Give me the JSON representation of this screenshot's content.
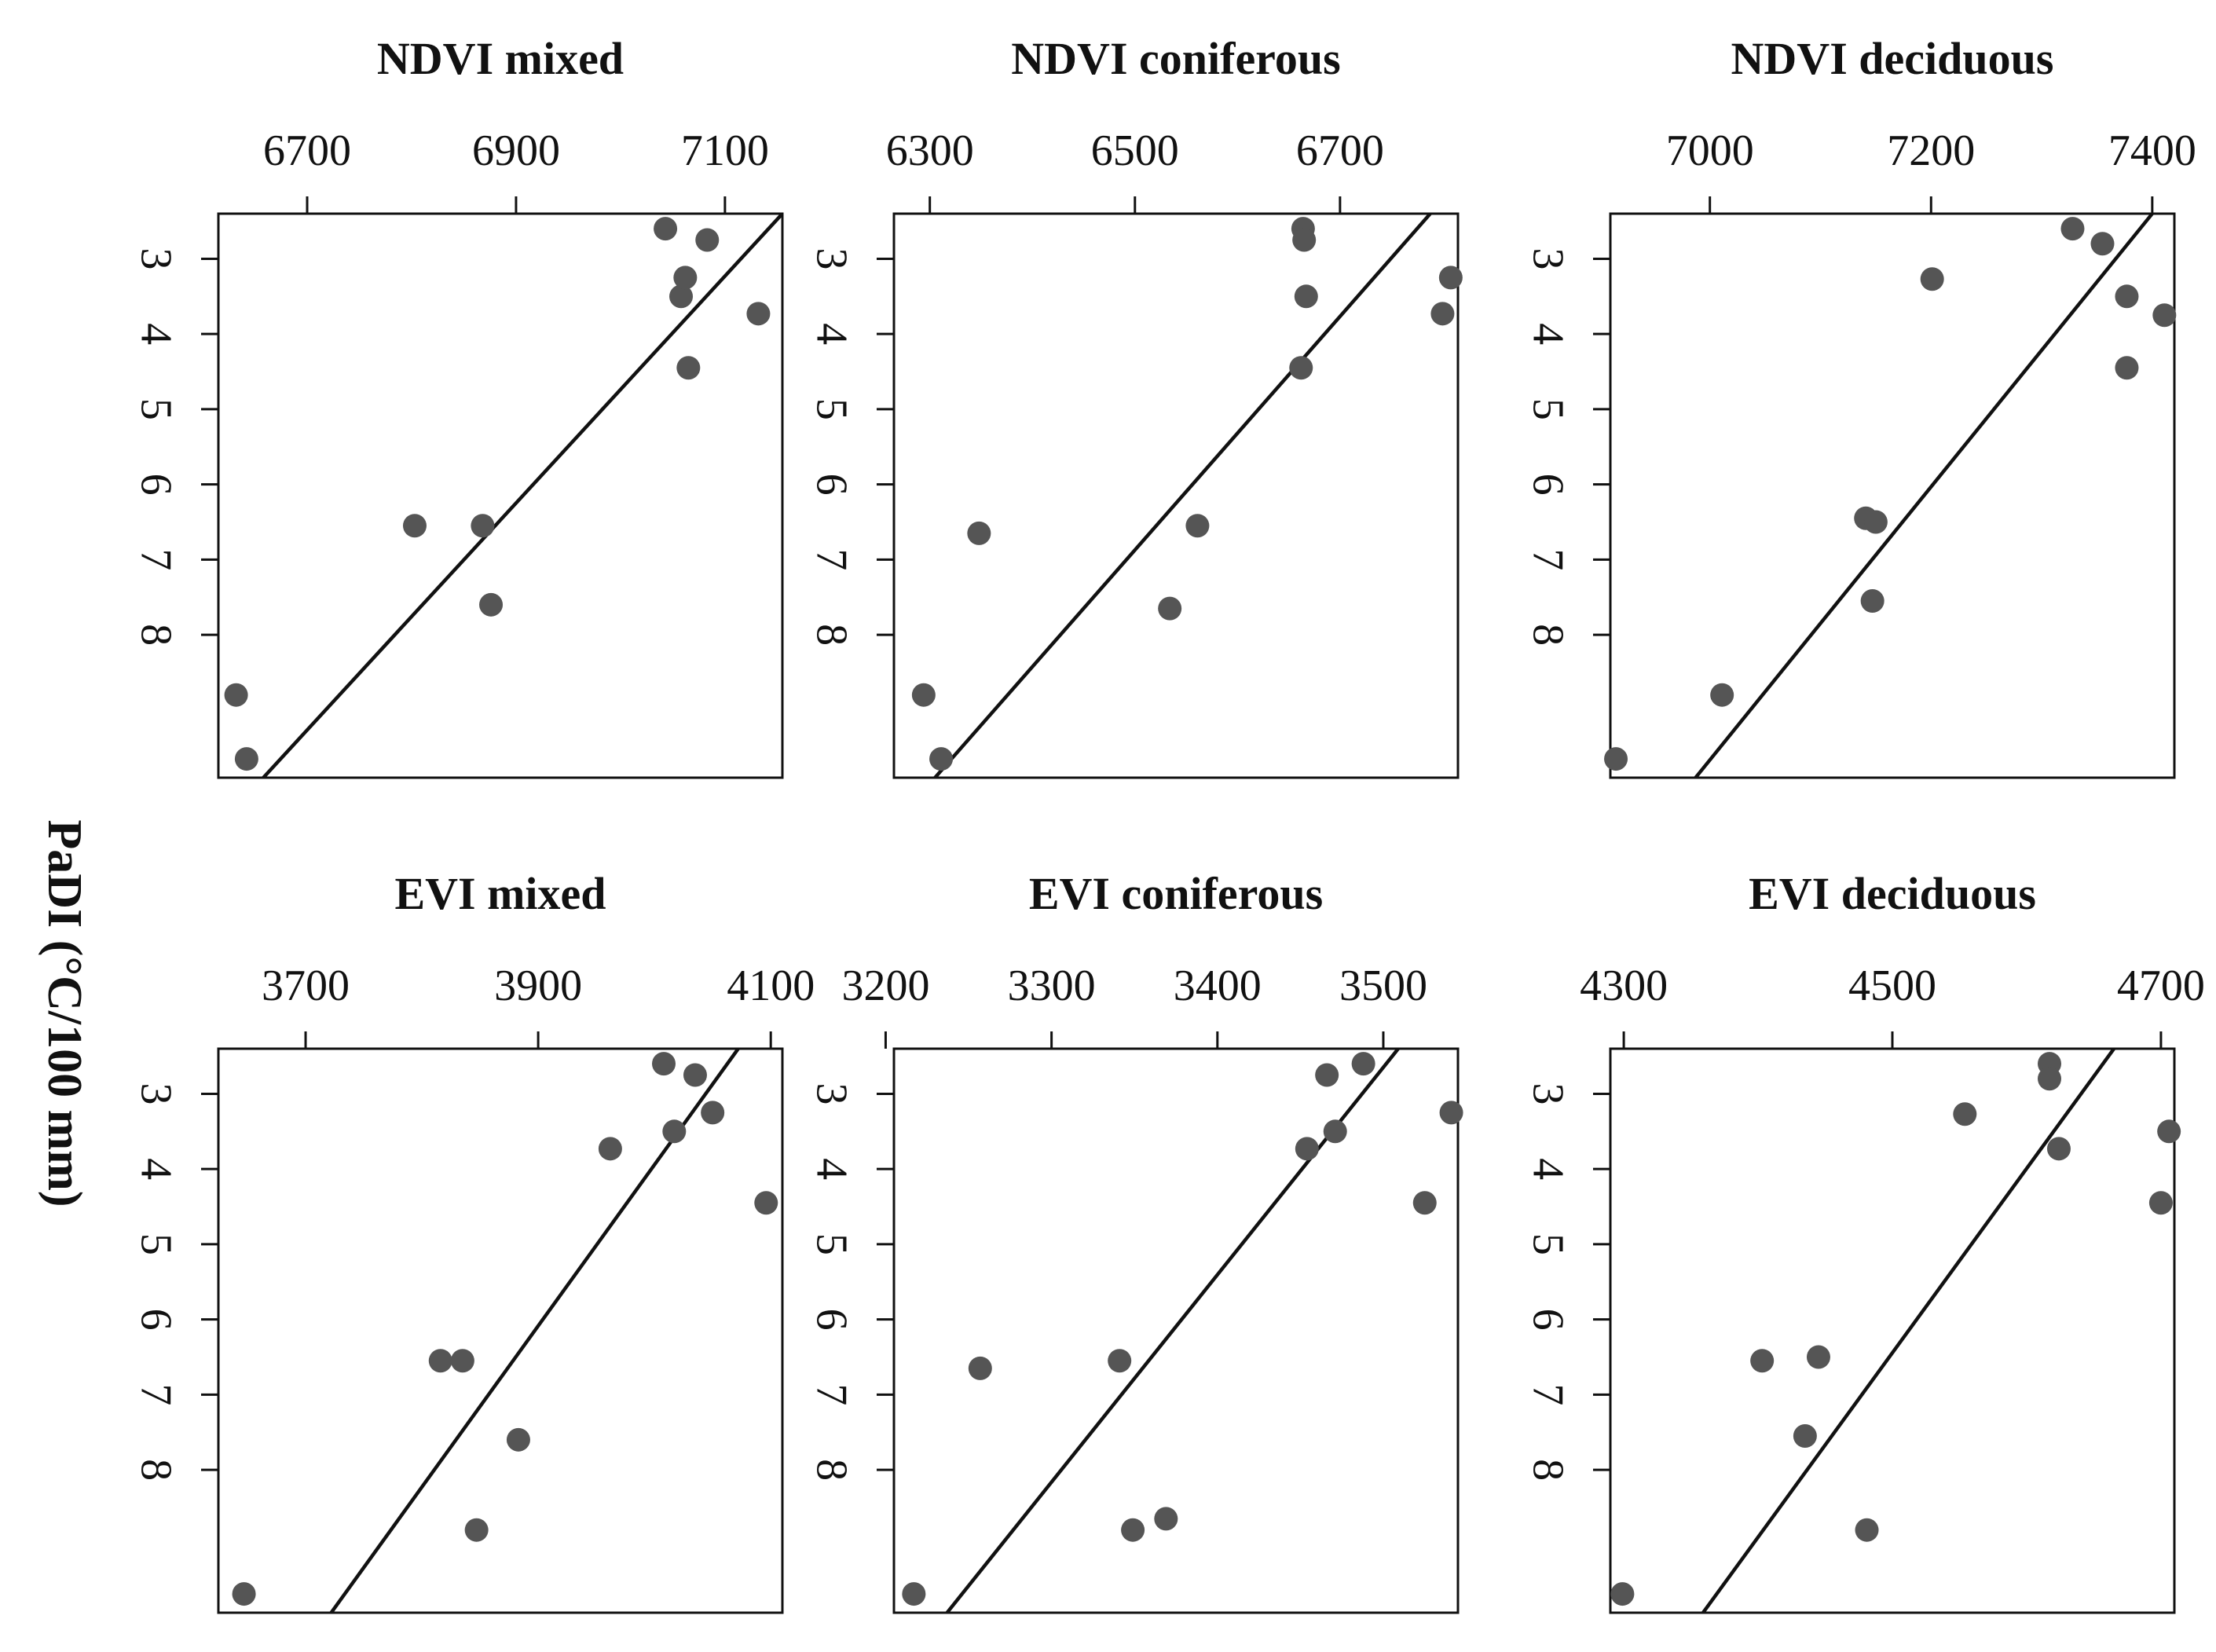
{
  "figure": {
    "ylabel": "PaDI (°C/100 mm)",
    "point_color": "#555555",
    "line_color": "#111111"
  },
  "chart_data": [
    {
      "type": "scatter",
      "title": "NDVI mixed",
      "xlabel": "",
      "ylabel": "PaDI (°C/100 mm)",
      "xlim": [
        6615,
        7155
      ],
      "ylim": [
        2.4,
        9.9
      ],
      "x_ticks": [
        6700,
        6900,
        7100
      ],
      "y_ticks": [
        3,
        4,
        5,
        6,
        7,
        8
      ],
      "x": [
        6632,
        6642,
        6803,
        6868,
        6876,
        7043,
        7058,
        7062,
        7083,
        7065,
        7132
      ],
      "y": [
        8.8,
        9.65,
        6.55,
        6.55,
        7.6,
        2.6,
        3.5,
        3.25,
        2.75,
        4.45,
        3.73
      ],
      "fit": [
        [
          6658,
          9.9
        ],
        [
          7155,
          2.4
        ]
      ]
    },
    {
      "type": "scatter",
      "title": "NDVI coniferous",
      "xlabel": "",
      "ylabel": "PaDI (°C/100 mm)",
      "xlim": [
        6265,
        6815
      ],
      "ylim": [
        2.4,
        9.9
      ],
      "x_ticks": [
        6300,
        6500,
        6700
      ],
      "y_ticks": [
        3,
        4,
        5,
        6,
        7,
        8
      ],
      "x": [
        6294,
        6311,
        6348,
        6534,
        6561,
        6662,
        6664,
        6665,
        6667,
        6800,
        6808
      ],
      "y": [
        8.8,
        9.65,
        6.65,
        7.65,
        6.55,
        4.45,
        2.6,
        2.75,
        3.5,
        3.73,
        3.25
      ],
      "fit": [
        [
          6305,
          9.9
        ],
        [
          6788,
          2.4
        ]
      ]
    },
    {
      "type": "scatter",
      "title": "NDVI deciduous",
      "xlabel": "",
      "ylabel": "PaDI (°C/100 mm)",
      "xlim": [
        6910,
        7420
      ],
      "ylim": [
        2.4,
        9.9
      ],
      "x_ticks": [
        7000,
        7200,
        7400
      ],
      "y_ticks": [
        3,
        4,
        5,
        6,
        7,
        8
      ],
      "x": [
        6915,
        7011,
        7141,
        7150,
        7147,
        7201,
        7328,
        7355,
        7377,
        7377,
        7411
      ],
      "y": [
        9.65,
        8.8,
        6.45,
        6.5,
        7.55,
        3.27,
        2.6,
        2.8,
        3.5,
        4.45,
        3.75
      ],
      "fit": [
        [
          6987,
          9.9
        ],
        [
          7400,
          2.4
        ]
      ]
    },
    {
      "type": "scatter",
      "title": "EVI mixed",
      "xlabel": "",
      "ylabel": "PaDI (°C/100 mm)",
      "xlim": [
        3625,
        4110
      ],
      "ylim": [
        2.4,
        9.9
      ],
      "x_ticks": [
        3700,
        3900,
        4100
      ],
      "y_ticks": [
        3,
        4,
        5,
        6,
        7,
        8
      ],
      "x": [
        3647,
        3816,
        3835,
        3847,
        3883,
        3962,
        4008,
        4017,
        4035,
        4050,
        4096
      ],
      "y": [
        9.65,
        6.55,
        6.55,
        8.8,
        7.6,
        3.73,
        2.6,
        3.5,
        2.75,
        3.25,
        4.45
      ],
      "fit": [
        [
          3722,
          9.9
        ],
        [
          4072,
          2.4
        ]
      ]
    },
    {
      "type": "scatter",
      "title": "EVI coniferous",
      "xlabel": "",
      "ylabel": "PaDI (°C/100 mm)",
      "xlim": [
        3205,
        3545
      ],
      "ylim": [
        2.4,
        9.9
      ],
      "x_ticks": [
        3200,
        3300,
        3400,
        3500
      ],
      "y_ticks": [
        3,
        4,
        5,
        6,
        7,
        8
      ],
      "x": [
        3217,
        3257,
        3341,
        3349,
        3369,
        3454,
        3466,
        3471,
        3488,
        3525,
        3541
      ],
      "y": [
        9.65,
        6.65,
        6.55,
        8.8,
        8.65,
        3.73,
        2.75,
        3.5,
        2.6,
        4.45,
        3.25
      ],
      "fit": [
        [
          3237,
          9.9
        ],
        [
          3509,
          2.4
        ]
      ]
    },
    {
      "type": "scatter",
      "title": "EVI deciduous",
      "xlabel": "",
      "ylabel": "PaDI (°C/100 mm)",
      "xlim": [
        4290,
        4710
      ],
      "ylim": [
        2.4,
        9.9
      ],
      "x_ticks": [
        4300,
        4500,
        4700
      ],
      "y_ticks": [
        3,
        4,
        5,
        6,
        7,
        8
      ],
      "x": [
        4299,
        4403,
        4435,
        4445,
        4481,
        4554,
        4617,
        4617,
        4624,
        4700,
        4706
      ],
      "y": [
        9.65,
        6.55,
        7.55,
        6.5,
        8.8,
        3.27,
        2.6,
        2.8,
        3.73,
        4.45,
        3.5
      ],
      "fit": [
        [
          4359,
          9.9
        ],
        [
          4665,
          2.4
        ]
      ]
    }
  ]
}
